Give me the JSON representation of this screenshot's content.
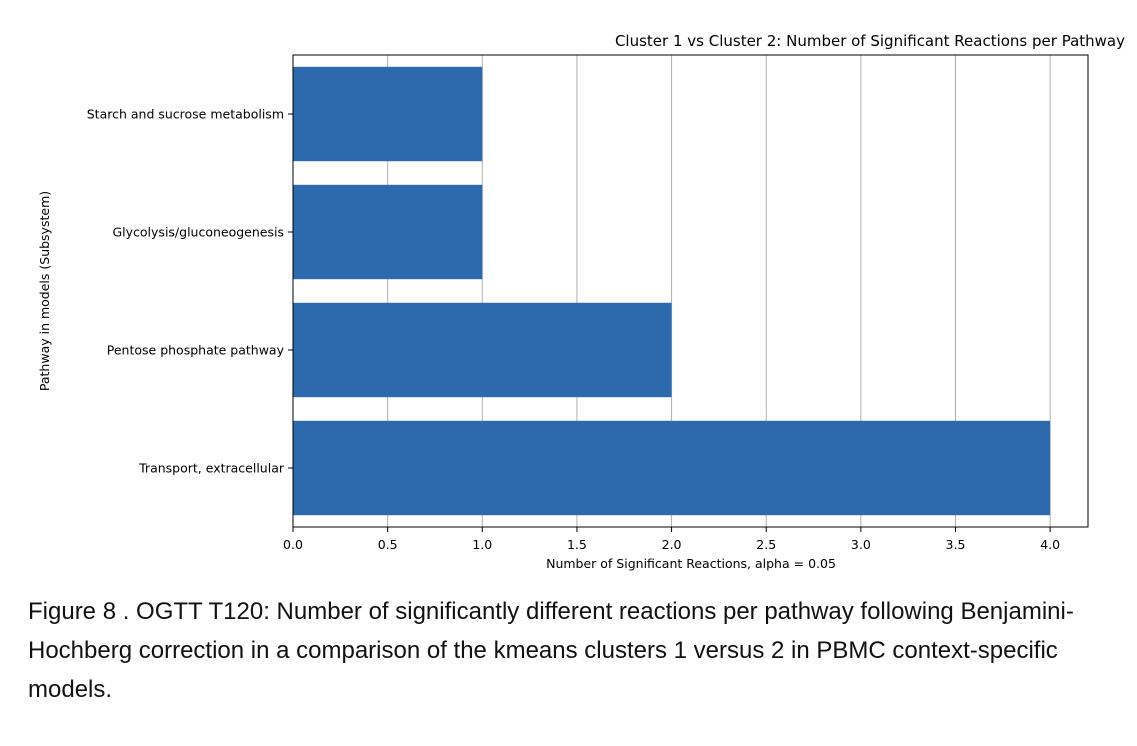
{
  "chart_data": {
    "type": "bar",
    "orientation": "horizontal",
    "title": "Cluster 1 vs Cluster 2: Number of Significant Reactions per Pathway",
    "xlabel": "Number of Significant Reactions, alpha = 0.05",
    "ylabel": "Pathway in models (Subsystem)",
    "categories": [
      "Starch and sucrose metabolism",
      "Glycolysis/gluconeogenesis",
      "Pentose phosphate pathway",
      "Transport, extracellular"
    ],
    "values": [
      1,
      1,
      2,
      4
    ],
    "xlim": [
      0,
      4.2
    ],
    "xticks": [
      "0.0",
      "0.5",
      "1.0",
      "1.5",
      "2.0",
      "2.5",
      "3.0",
      "3.5",
      "4.0"
    ],
    "grid": "vertical",
    "bar_color": "#2c6aad"
  },
  "caption": "Figure 8 . OGTT T120: Number of significantly different reactions per pathway following Benjamini-Hochberg correction in a comparison of the kmeans clusters 1 versus 2 in PBMC context-specific models."
}
